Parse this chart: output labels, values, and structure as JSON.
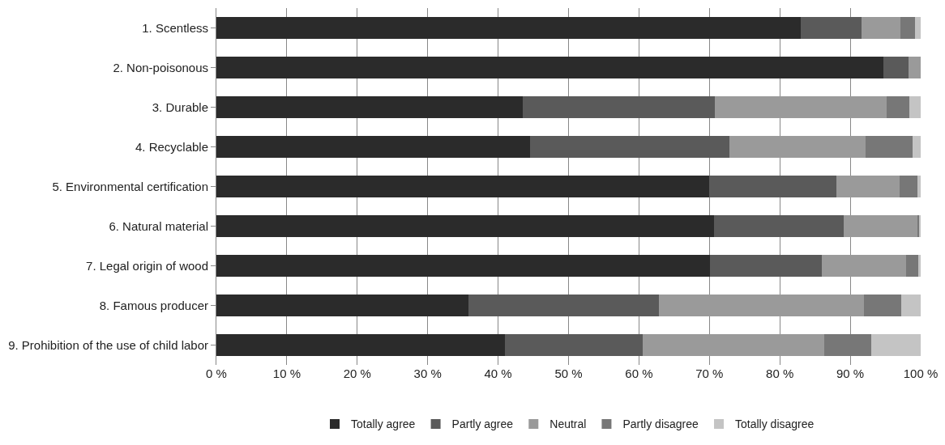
{
  "chart_data": {
    "type": "bar",
    "orientation": "horizontal",
    "stacked": true,
    "categories": [
      "1. Scentless",
      "2. Non-poisonous",
      "3. Durable",
      "4. Recyclable",
      "5. Environmental certification",
      "6. Natural material",
      "7. Legal origin of wood",
      "8. Famous producer",
      "9. Prohibition of the use of child labor"
    ],
    "series": [
      {
        "name": "Totally agree",
        "color": "#2b2b2b",
        "values": [
          83.0,
          94.7,
          43.5,
          44.5,
          70.0,
          70.7,
          70.1,
          35.8,
          41.0
        ]
      },
      {
        "name": "Partly agree",
        "color": "#5a5a5a",
        "values": [
          8.6,
          3.6,
          27.3,
          28.3,
          18.0,
          18.4,
          15.9,
          27.0,
          19.5
        ]
      },
      {
        "name": "Neutral",
        "color": "#9a9a9a",
        "values": [
          5.5,
          1.7,
          24.4,
          19.4,
          9.0,
          10.4,
          11.9,
          29.2,
          25.8
        ]
      },
      {
        "name": "Partly disagree",
        "color": "#777777",
        "values": [
          2.1,
          0,
          3.2,
          6.6,
          2.5,
          0.3,
          1.7,
          5.2,
          6.7
        ]
      },
      {
        "name": "Totally disagree",
        "color": "#c4c4c4",
        "values": [
          0.8,
          0,
          1.6,
          1.2,
          0.5,
          0.2,
          0.4,
          2.8,
          7.0
        ]
      }
    ],
    "xlim": [
      0,
      100
    ],
    "xticks": [
      {
        "value": 0,
        "label": "0 %"
      },
      {
        "value": 10,
        "label": "10 %"
      },
      {
        "value": 20,
        "label": "20 %"
      },
      {
        "value": 30,
        "label": "30 %"
      },
      {
        "value": 40,
        "label": "40 %"
      },
      {
        "value": 50,
        "label": "50 %"
      },
      {
        "value": 60,
        "label": "60 %"
      },
      {
        "value": 70,
        "label": "70 %"
      },
      {
        "value": 80,
        "label": "80 %"
      },
      {
        "value": 90,
        "label": "90 %"
      },
      {
        "value": 100,
        "label": "100 %"
      }
    ],
    "grid": "x",
    "legend": "bottom"
  }
}
